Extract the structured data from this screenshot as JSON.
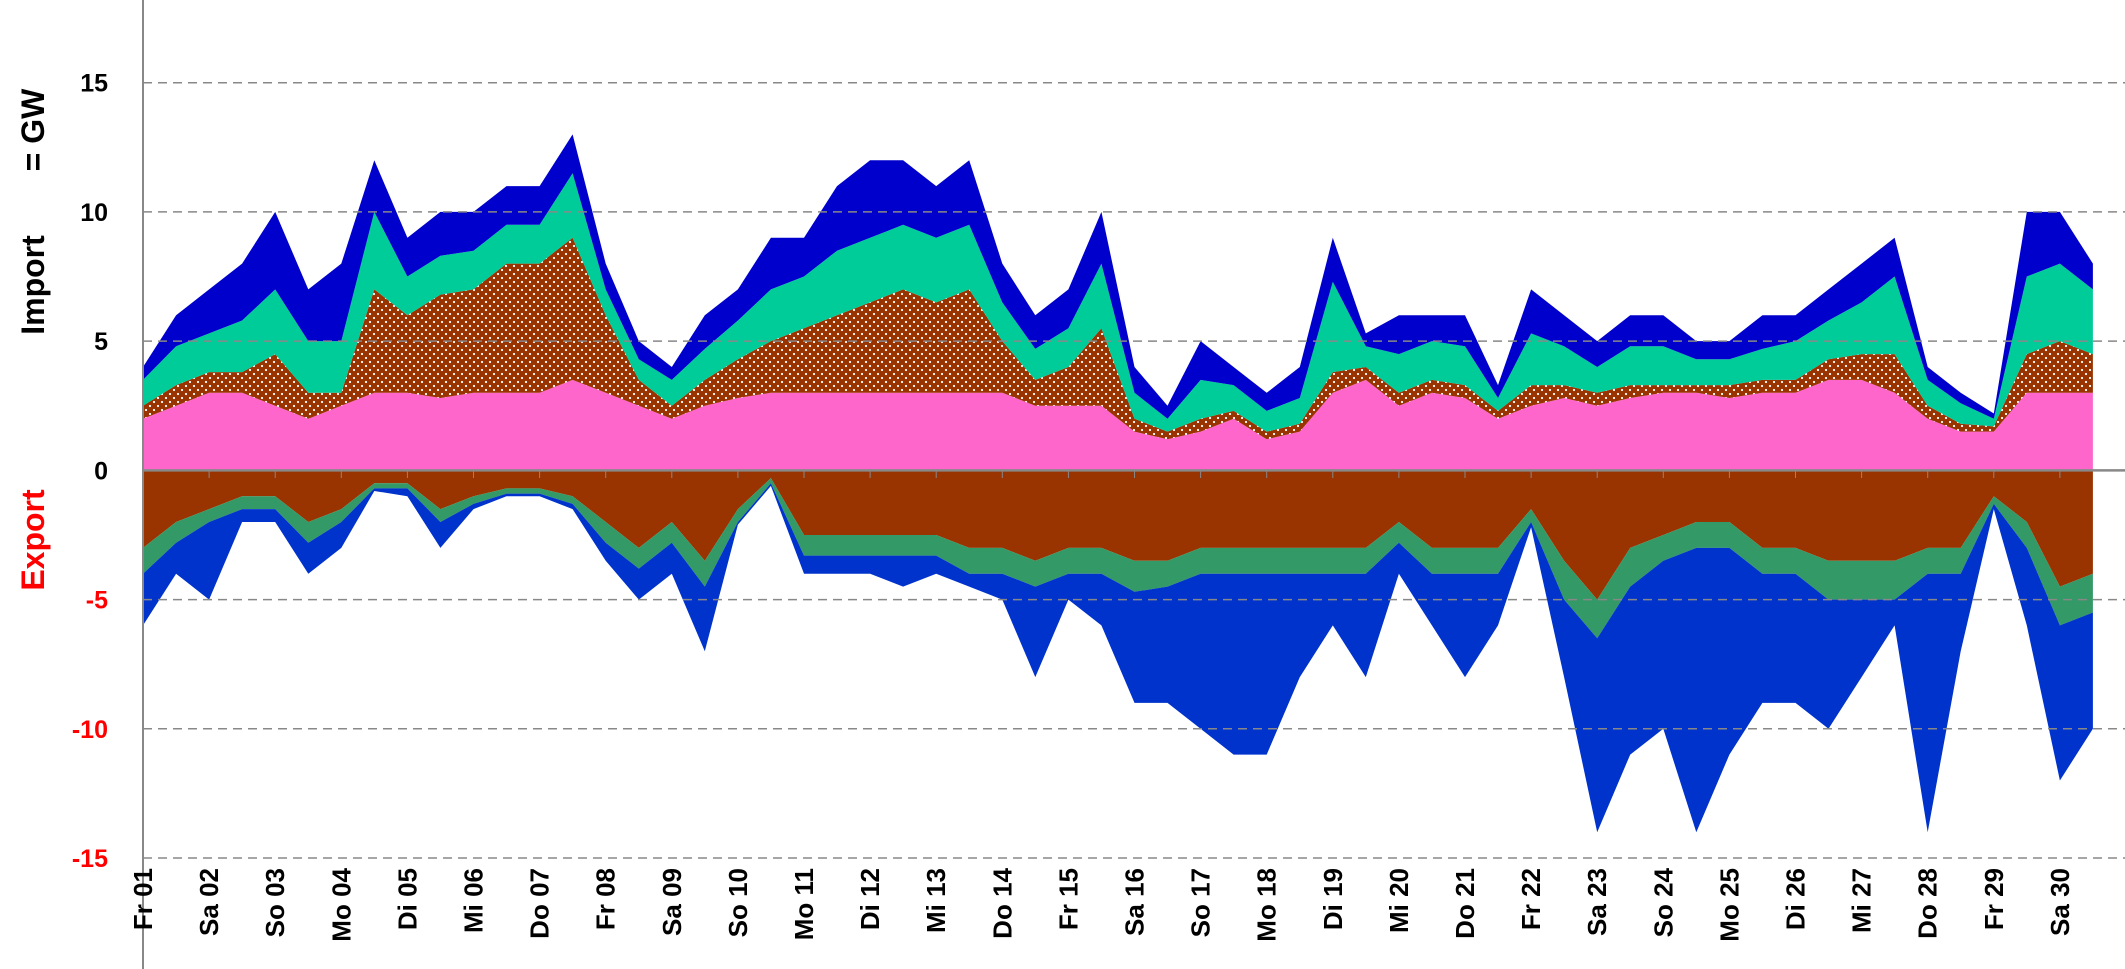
{
  "chart_data": {
    "type": "area",
    "y_label_import": "Import",
    "y_label_unit": "= GW",
    "y_label_export": "Export",
    "categories": [
      "Fr 01",
      null,
      "Sa 02",
      null,
      "So 03",
      null,
      "Mo 04",
      null,
      "Di 05",
      null,
      "Mi 06",
      null,
      "Do 07",
      null,
      "Fr 08",
      null,
      "Sa 09",
      null,
      "So 10",
      null,
      "Mo 11",
      null,
      "Di 12",
      null,
      "Mi 13",
      null,
      "Do 14",
      null,
      "Fr 15",
      null,
      "Sa 16",
      null,
      "So 17",
      null,
      "Mo 18",
      null,
      "Di 19",
      null,
      "Mi 20",
      null,
      "Do 21",
      null,
      "Fr 22",
      null,
      "Sa 23",
      null,
      "So 24",
      null,
      "Mo 25",
      null,
      "Di 26",
      null,
      "Mi 27",
      null,
      "Do 28",
      null,
      "Fr 29",
      null,
      "Sa 30",
      null
    ],
    "ylim": [
      -15,
      18.2
    ],
    "yticks": [
      -15,
      -10,
      -5,
      0,
      5,
      10,
      15
    ],
    "grid": true,
    "series": [
      {
        "color": "#ff66cc",
        "values": [
          2,
          2.5,
          3,
          3,
          2.5,
          2,
          2.5,
          3,
          3,
          2.8,
          3,
          3,
          3,
          3.5,
          3,
          2.5,
          2,
          2.5,
          2.8,
          3,
          3,
          3,
          3,
          3,
          3,
          3,
          3,
          2.5,
          2.5,
          2.5,
          1.5,
          1.2,
          1.5,
          2,
          1.2,
          1.5,
          3,
          3.5,
          2.5,
          3,
          2.8,
          2,
          2.5,
          2.8,
          2.5,
          2.8,
          3,
          3,
          2.8,
          3,
          3,
          3.5,
          3.5,
          3,
          2,
          1.5,
          1.5,
          3,
          3,
          3
        ]
      },
      {
        "color": "#993300",
        "pattern": "dots",
        "values": [
          0.5,
          0.8,
          0.8,
          0.8,
          2,
          1,
          0.5,
          4,
          3,
          4,
          4,
          5,
          5,
          5.5,
          3,
          1,
          0.5,
          1,
          1.5,
          2,
          2.5,
          3,
          3.5,
          4,
          3.5,
          4,
          2,
          1,
          1.5,
          3,
          0.5,
          0.3,
          0.5,
          0.3,
          0.3,
          0.3,
          0.8,
          0.5,
          0.5,
          0.5,
          0.5,
          0.3,
          0.8,
          0.5,
          0.5,
          0.5,
          0.3,
          0.3,
          0.5,
          0.5,
          0.5,
          0.8,
          1,
          1.5,
          0.5,
          0.3,
          0.2,
          1.5,
          2,
          1.5
        ]
      },
      {
        "color": "#00cc99",
        "values": [
          1,
          1.5,
          1.5,
          2,
          2.5,
          2,
          2,
          3,
          1.5,
          1.5,
          1.5,
          1.5,
          1.5,
          2.5,
          1,
          0.8,
          1,
          1.2,
          1.5,
          2,
          2,
          2.5,
          2.5,
          2.5,
          2.5,
          2.5,
          1.5,
          1.2,
          1.5,
          2.5,
          1,
          0.5,
          1.5,
          1,
          0.8,
          1,
          3.5,
          0.8,
          1.5,
          1.5,
          1.5,
          0.5,
          2,
          1.5,
          1,
          1.5,
          1.5,
          1,
          1,
          1.2,
          1.5,
          1.5,
          2,
          3,
          1,
          0.8,
          0.3,
          3,
          3,
          2.5
        ]
      },
      {
        "color": "#0000cc",
        "values": [
          0.5,
          1.2,
          1.7,
          2.2,
          3,
          2,
          3,
          2,
          1.5,
          1.7,
          1.5,
          1.5,
          1.5,
          1.5,
          1,
          0.7,
          0.5,
          1.3,
          1.2,
          2,
          1.5,
          2.5,
          3,
          2.5,
          2,
          2.5,
          1.5,
          1.3,
          1.5,
          2,
          1,
          0.5,
          1.5,
          0.7,
          0.7,
          1.2,
          1.7,
          0.5,
          1.5,
          1,
          1.2,
          0.5,
          1.7,
          1.2,
          1,
          1.2,
          1.2,
          0.7,
          0.7,
          1.3,
          1,
          1.2,
          1.5,
          1.5,
          0.5,
          0.4,
          0.2,
          2.5,
          2,
          1
        ]
      },
      {
        "color": "#993300",
        "values": [
          -3,
          -2,
          -1.5,
          -1,
          -1,
          -2,
          -1.5,
          -0.5,
          -0.5,
          -1.5,
          -1,
          -0.7,
          -0.7,
          -1,
          -2,
          -3,
          -2,
          -3.5,
          -1.5,
          -0.3,
          -2.5,
          -2.5,
          -2.5,
          -2.5,
          -2.5,
          -3,
          -3,
          -3.5,
          -3,
          -3,
          -3.5,
          -3.5,
          -3,
          -3,
          -3,
          -3,
          -3,
          -3,
          -2,
          -3,
          -3,
          -3,
          -1.5,
          -3.5,
          -5,
          -3,
          -2.5,
          -2,
          -2,
          -3,
          -3,
          -3.5,
          -3.5,
          -3.5,
          -3,
          -3,
          -1,
          -2,
          -4.5,
          -4
        ]
      },
      {
        "color": "#339966",
        "values": [
          -1,
          -0.8,
          -0.5,
          -0.5,
          -0.5,
          -0.8,
          -0.5,
          -0.2,
          -0.2,
          -0.5,
          -0.3,
          -0.2,
          -0.2,
          -0.3,
          -0.8,
          -0.8,
          -0.8,
          -1,
          -0.5,
          -0.2,
          -0.8,
          -0.8,
          -0.8,
          -0.8,
          -0.8,
          -1,
          -1,
          -1,
          -1,
          -1,
          -1.2,
          -1,
          -1,
          -1,
          -1,
          -1,
          -1,
          -1,
          -0.8,
          -1,
          -1,
          -1,
          -0.5,
          -1.5,
          -1.5,
          -1.5,
          -1,
          -1,
          -1,
          -1,
          -1,
          -1.5,
          -1.5,
          -1.5,
          -1,
          -1,
          -0.3,
          -1,
          -1.5,
          -1.5
        ]
      },
      {
        "color": "#0033cc",
        "values": [
          -2,
          -1.2,
          -3,
          -0.5,
          -0.5,
          -1.2,
          -1,
          -0.1,
          -0.3,
          -1,
          -0.2,
          -0.1,
          -0.1,
          -0.2,
          -0.7,
          -1.2,
          -1.2,
          -2.5,
          -0.1,
          -0.1,
          -0.7,
          -0.7,
          -0.7,
          -1.2,
          -0.7,
          -0.5,
          -1,
          -3.5,
          -1,
          -2,
          -4.3,
          -4.5,
          -6,
          -7,
          -7,
          -4,
          -2,
          -4,
          -1.2,
          -2,
          -4,
          -2,
          -0.2,
          -3,
          -7.5,
          -6.5,
          -6.5,
          -11,
          -8,
          -5,
          -5,
          -5,
          -3,
          -1,
          -10,
          -3,
          -0.2,
          -3,
          -6,
          -4.5
        ]
      }
    ]
  }
}
